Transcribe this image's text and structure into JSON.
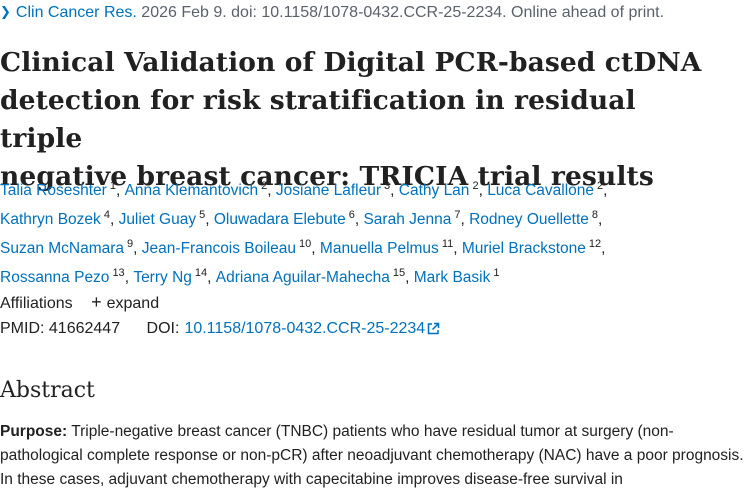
{
  "citation": {
    "journal": "Clin Cancer Res.",
    "details": "2026 Feb 9. doi: 10.1158/1078-0432.CCR-25-2234. Online ahead of print."
  },
  "title": {
    "line1": "Clinical Validation of Digital PCR-based ctDNA",
    "line2": "detection for risk stratification in residual triple",
    "line3": "negative breast cancer: TRICIA trial results"
  },
  "authors": [
    {
      "name": "Talia Roseshter",
      "aff": "1"
    },
    {
      "name": "Anna Klemantovich",
      "aff": "2"
    },
    {
      "name": "Josiane Lafleur",
      "aff": "3"
    },
    {
      "name": "Cathy Lan",
      "aff": "2"
    },
    {
      "name": "Luca Cavallone",
      "aff": "2"
    },
    {
      "name": "Kathryn Bozek",
      "aff": "4"
    },
    {
      "name": "Juliet Guay",
      "aff": "5"
    },
    {
      "name": "Oluwadara Elebute",
      "aff": "6"
    },
    {
      "name": "Sarah Jenna",
      "aff": "7"
    },
    {
      "name": "Rodney Ouellette",
      "aff": "8"
    },
    {
      "name": "Suzan McNamara",
      "aff": "9"
    },
    {
      "name": "Jean-Francois Boileau",
      "aff": "10"
    },
    {
      "name": "Manuella Pelmus",
      "aff": "11"
    },
    {
      "name": "Muriel Brackstone",
      "aff": "12"
    },
    {
      "name": "Rossanna Pezo",
      "aff": "13"
    },
    {
      "name": "Terry Ng",
      "aff": "14"
    },
    {
      "name": "Adriana Aguilar-Mahecha",
      "aff": "15"
    },
    {
      "name": "Mark Basik",
      "aff": "1"
    }
  ],
  "affiliations": {
    "label": "Affiliations",
    "expand_label": "expand"
  },
  "identifiers": {
    "pmid_label": "PMID:",
    "pmid": "41662447",
    "doi_label": "DOI:",
    "doi": "10.1158/1078-0432.CCR-25-2234"
  },
  "abstract": {
    "heading": "Abstract",
    "purpose_label": "Purpose:",
    "purpose_text": "Triple-negative breast cancer (TNBC) patients who have residual tumor at surgery (non-pathological complete response or non-pCR) after neoadjuvant chemotherapy (NAC) have a poor prognosis. In these cases, adjuvant chemotherapy with capecitabine improves disease-free survival in"
  },
  "colors": {
    "link": "#0071bc",
    "text": "#212121",
    "muted": "#5b616b"
  }
}
